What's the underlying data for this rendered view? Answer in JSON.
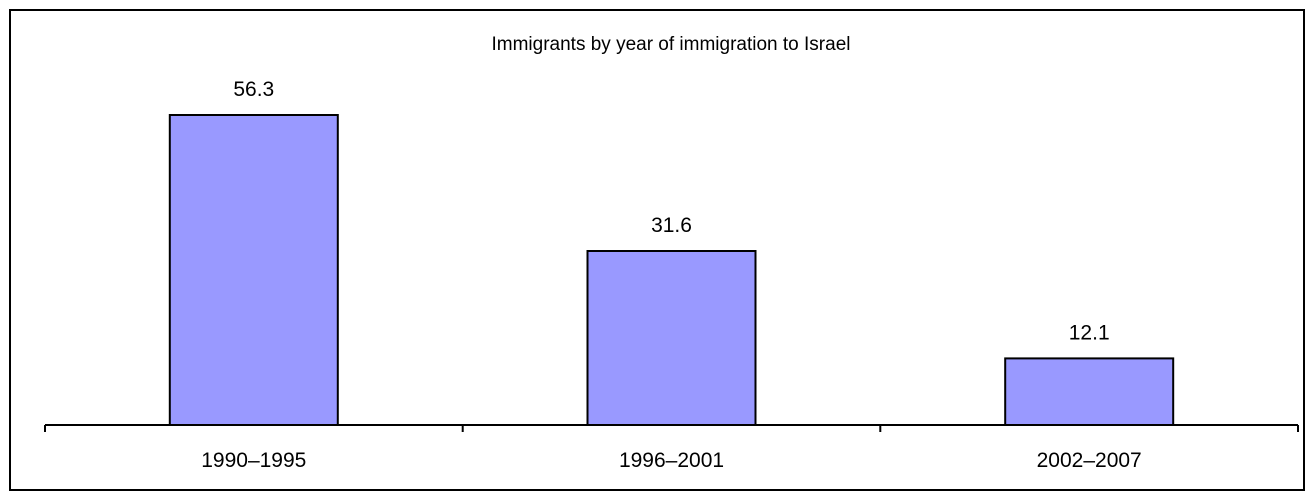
{
  "chart_data": {
    "type": "bar",
    "title": "Immigrants by year of immigration to Israel",
    "xlabel": "",
    "ylabel": "",
    "categories": [
      "1990–1995",
      "1996–2001",
      "2002–2007"
    ],
    "values": [
      56.3,
      31.6,
      12.1
    ],
    "value_labels": [
      "56.3",
      "31.6",
      "12.1"
    ],
    "ylim": [
      0,
      60
    ],
    "grid": false,
    "legend": "none"
  },
  "colors": {
    "bar_fill": "#9999ff",
    "bar_stroke": "#000000",
    "axis": "#000000",
    "background": "#ffffff"
  }
}
